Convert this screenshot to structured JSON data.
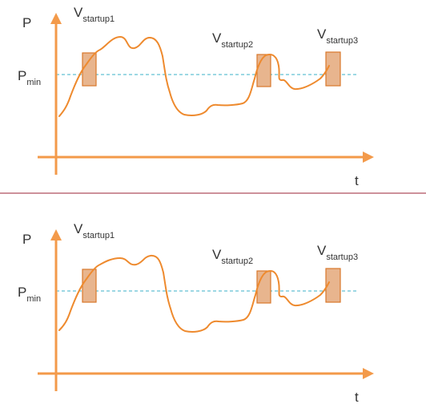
{
  "colors": {
    "axis": "#F39A4A",
    "curve": "#EE8A2E",
    "marker_fill": "#E8B58E",
    "marker_stroke": "#D9772B",
    "threshold": "#3BB2C9",
    "divider": "#9B2335",
    "text": "#333333"
  },
  "panels": [
    {
      "y_axis_label": "P",
      "x_axis_label": "t",
      "threshold": {
        "symbol": "P",
        "subscript": "min"
      },
      "startups": [
        {
          "symbol": "V",
          "subscript": "startup1"
        },
        {
          "symbol": "V",
          "subscript": "startup2"
        },
        {
          "symbol": "V",
          "subscript": "startup3"
        }
      ]
    },
    {
      "y_axis_label": "P",
      "x_axis_label": "t",
      "threshold": {
        "symbol": "P",
        "subscript": "min"
      },
      "startups": [
        {
          "symbol": "V",
          "subscript": "startup1"
        },
        {
          "symbol": "V",
          "subscript": "startup2"
        },
        {
          "symbol": "V",
          "subscript": "startup3"
        }
      ]
    }
  ]
}
